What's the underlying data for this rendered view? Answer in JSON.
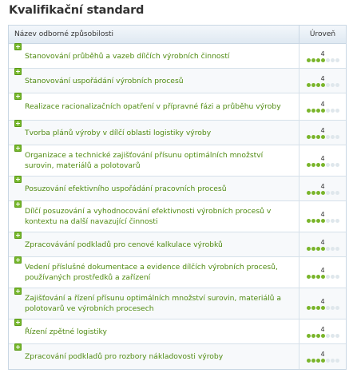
{
  "page": {
    "title": "Kvalifikační standard"
  },
  "table": {
    "col_name": "Název odborné způsobilosti",
    "col_level": "Úroveň",
    "max_level": 7,
    "rows": [
      {
        "name": "Stanovování průběhů a vazeb dílčích výrobních činností",
        "level": "4",
        "level_value": 4
      },
      {
        "name": "Stanovování uspořádání výrobních procesů",
        "level": "4",
        "level_value": 4
      },
      {
        "name": "Realizace racionalizačních opatření v přípravné fázi a průběhu výroby",
        "level": "4",
        "level_value": 4
      },
      {
        "name": "Tvorba plánů výroby v dílčí oblasti logistiky výroby",
        "level": "4",
        "level_value": 4
      },
      {
        "name": "Organizace a technické zajišťování přísunu optimálních množství surovin, materiálů a polotovarů",
        "level": "4",
        "level_value": 4
      },
      {
        "name": "Posuzování efektivního uspořádání pracovních procesů",
        "level": "4",
        "level_value": 4
      },
      {
        "name": "Dílčí posuzování a vyhodnocování efektivnosti výrobních procesů v kontextu na další navazující činnosti",
        "level": "4",
        "level_value": 4
      },
      {
        "name": "Zpracovávání podkladů pro cenové kalkulace výrobků",
        "level": "4",
        "level_value": 4
      },
      {
        "name": "Vedení příslušné dokumentace a evidence dílčích výrobních procesů, používaných prostředků a zařízení",
        "level": "4",
        "level_value": 4
      },
      {
        "name": "Zajišťování a řízení přísunu optimálních množství surovin, materiálů a polotovarů ve výrobních procesech",
        "level": "4",
        "level_value": 4
      },
      {
        "name": "Řízení zpětné logistiky",
        "level": "4",
        "level_value": 4
      },
      {
        "name": "Zpracování podkladů pro rozbory nákladovosti výroby",
        "level": "4",
        "level_value": 4
      }
    ]
  },
  "colors": {
    "link_green": "#4f8a10",
    "dot_on": "#7ab52b",
    "dot_off": "#dfe7ec",
    "border": "#c9d7e4"
  }
}
